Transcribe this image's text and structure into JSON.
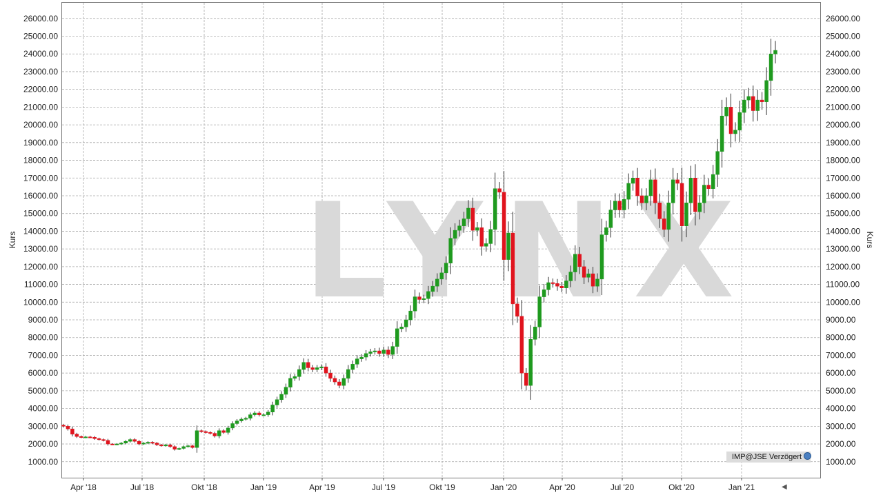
{
  "chart_data": {
    "type": "candlestick",
    "title": "",
    "ylabel_left": "Kurs",
    "ylabel_right": "Kurs",
    "ylim": [
      0,
      26600
    ],
    "y_ticks": [
      "1000.00",
      "2000.00",
      "3000.00",
      "4000.00",
      "5000.00",
      "6000.00",
      "7000.00",
      "8000.00",
      "9000.00",
      "10000.00",
      "11000.00",
      "12000.00",
      "13000.00",
      "14000.00",
      "15000.00",
      "16000.00",
      "17000.00",
      "18000.00",
      "19000.00",
      "20000.00",
      "21000.00",
      "22000.00",
      "23000.00",
      "24000.00",
      "25000.00",
      "26000.00"
    ],
    "x_ticks": [
      "Apr '18",
      "Jul '18",
      "Okt '18",
      "Jan '19",
      "Apr '19",
      "Jul '19",
      "Okt '19",
      "Jan '20",
      "Apr '20",
      "Jul '20",
      "Okt '20",
      "Jan '21"
    ],
    "grid": true,
    "watermark": "LYNX",
    "source_label": "IMP@JSE Verzögert",
    "colors": {
      "up": "#1f9a1f",
      "down": "#e0141e",
      "grid": "#a8a8a8",
      "wick": "#333333"
    },
    "interval": "weekly",
    "close": [
      3000,
      2850,
      2550,
      2420,
      2380,
      2400,
      2380,
      2300,
      2250,
      2200,
      2000,
      1980,
      2000,
      2050,
      2150,
      2250,
      2150,
      2000,
      2050,
      2100,
      2050,
      1950,
      1900,
      1950,
      1850,
      1700,
      1750,
      1850,
      1900,
      1800,
      2750,
      2700,
      2650,
      2600,
      2450,
      2750,
      2650,
      2900,
      3150,
      3300,
      3400,
      3450,
      3650,
      3750,
      3650,
      3650,
      3800,
      4200,
      4500,
      4800,
      5200,
      5700,
      5800,
      6200,
      6600,
      6300,
      6200,
      6300,
      6350,
      6000,
      5700,
      5500,
      5300,
      5700,
      6200,
      6500,
      6800,
      6900,
      7100,
      7200,
      7250,
      7100,
      7300,
      7050,
      7500,
      8500,
      8600,
      9000,
      9500,
      10300,
      10150,
      10200,
      10600,
      10900,
      11300,
      11650,
      12200,
      13600,
      14050,
      14300,
      14700,
      15300,
      14050,
      14200,
      13150,
      13300,
      14100,
      16400,
      16200,
      12400,
      13900,
      9900,
      9200,
      6000,
      5300,
      7900,
      8600,
      10300,
      10700,
      11100,
      11050,
      10900,
      10800,
      11200,
      11700,
      12700,
      12000,
      11400,
      11600,
      10900,
      11300,
      13800,
      14200,
      15200,
      15700,
      15200,
      15800,
      16700,
      17000,
      16000,
      15600,
      16000,
      16900,
      15600,
      14700,
      14100,
      15600,
      16900,
      16700,
      14300,
      15600,
      17000,
      15100,
      15600,
      16600,
      16400,
      17200,
      18500,
      20500,
      21000,
      19500,
      19700,
      20700,
      21400,
      21600,
      20800,
      21400,
      21300,
      22500,
      24000,
      24200
    ]
  }
}
